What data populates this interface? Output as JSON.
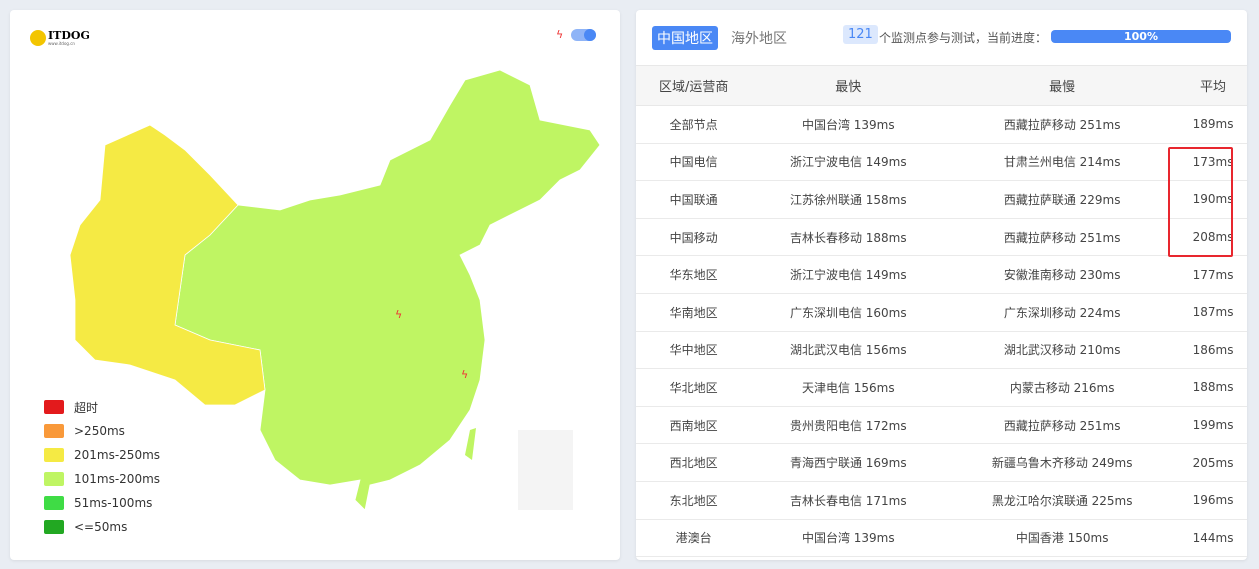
{
  "logo": {
    "text": "ITDOG",
    "sub": "www.itdog.cn"
  },
  "map": {
    "colors": {
      "region_201_250": "#f5ea44",
      "region_101_200": "#bff563"
    }
  },
  "legend": [
    {
      "label": "超时",
      "color": "#e31a1c"
    },
    {
      "label": ">250ms",
      "color": "#f9993a"
    },
    {
      "label": "201ms-250ms",
      "color": "#f5ea44"
    },
    {
      "label": "101ms-200ms",
      "color": "#bff563"
    },
    {
      "label": "51ms-100ms",
      "color": "#3fdc45"
    },
    {
      "label": "<=50ms",
      "color": "#22a822"
    }
  ],
  "tabs": [
    {
      "label": "中国地区",
      "active": true
    },
    {
      "label": "海外地区",
      "active": false
    }
  ],
  "nodes_count": "121",
  "progress_label": "个监测点参与测试，当前进度：",
  "progress": {
    "value": 100,
    "text": "100%"
  },
  "table": {
    "headers": [
      "区域/运营商",
      "最快",
      "最慢",
      "平均"
    ],
    "rows": [
      [
        "全部节点",
        "中国台湾 139ms",
        "西藏拉萨移动 251ms",
        "189ms"
      ],
      [
        "中国电信",
        "浙江宁波电信 149ms",
        "甘肃兰州电信 214ms",
        "173ms"
      ],
      [
        "中国联通",
        "江苏徐州联通 158ms",
        "西藏拉萨联通 229ms",
        "190ms"
      ],
      [
        "中国移动",
        "吉林长春移动 188ms",
        "西藏拉萨移动 251ms",
        "208ms"
      ],
      [
        "华东地区",
        "浙江宁波电信 149ms",
        "安徽淮南移动 230ms",
        "177ms"
      ],
      [
        "华南地区",
        "广东深圳电信 160ms",
        "广东深圳移动 224ms",
        "187ms"
      ],
      [
        "华中地区",
        "湖北武汉电信 156ms",
        "湖北武汉移动 210ms",
        "186ms"
      ],
      [
        "华北地区",
        "天津电信 156ms",
        "内蒙古移动 216ms",
        "188ms"
      ],
      [
        "西南地区",
        "贵州贵阳电信 172ms",
        "西藏拉萨移动 251ms",
        "199ms"
      ],
      [
        "西北地区",
        "青海西宁联通 169ms",
        "新疆乌鲁木齐移动 249ms",
        "205ms"
      ],
      [
        "东北地区",
        "吉林长春电信 171ms",
        "黑龙江哈尔滨联通 225ms",
        "196ms"
      ],
      [
        "港澳台",
        "中国台湾 139ms",
        "中国香港 150ms",
        "144ms"
      ]
    ]
  }
}
